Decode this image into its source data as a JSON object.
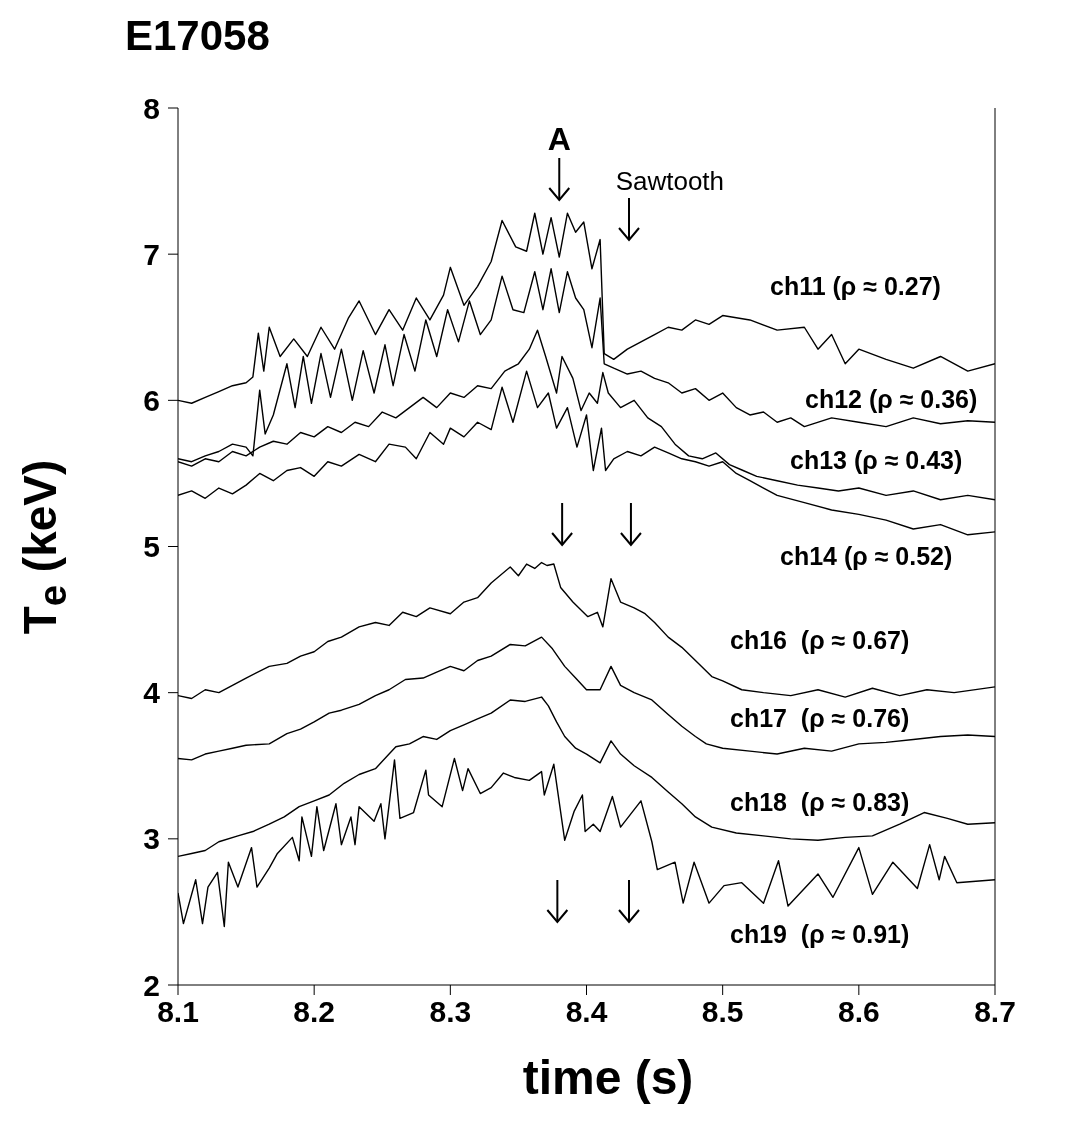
{
  "chart_data": {
    "type": "line",
    "title": "E17058",
    "xlabel": "time (s)",
    "ylabel": "T$_{e}$ (keV)",
    "xlim": [
      8.1,
      8.7
    ],
    "xticks": [
      8.1,
      8.2,
      8.3,
      8.4,
      8.5,
      8.6,
      8.7
    ],
    "ylim": [
      2,
      8
    ],
    "yticks": [
      2,
      3,
      4,
      5,
      6,
      7,
      8
    ],
    "marker": "none",
    "line_style": "solid",
    "annotations": [
      "A",
      "Sawtooth"
    ],
    "series": [
      {
        "name": "ch11 (ρ ≈ 0.27)",
        "color": "#000000",
        "x": [
          8.1,
          8.11,
          8.12,
          8.13,
          8.14,
          8.15,
          8.155,
          8.159,
          8.163,
          8.167,
          8.175,
          8.185,
          8.195,
          8.205,
          8.215,
          8.225,
          8.233,
          8.245,
          8.255,
          8.265,
          8.275,
          8.285,
          8.295,
          8.3,
          8.31,
          8.32,
          8.33,
          8.338,
          8.348,
          8.356,
          8.362,
          8.368,
          8.374,
          8.38,
          8.386,
          8.392,
          8.398,
          8.404,
          8.41,
          8.413,
          8.42,
          8.43,
          8.44,
          8.45,
          8.46,
          8.47,
          8.48,
          8.49,
          8.5,
          8.52,
          8.54,
          8.56,
          8.57,
          8.58,
          8.59,
          8.6,
          8.62,
          8.64,
          8.66,
          8.68,
          8.7
        ],
        "values": [
          6.0,
          5.98,
          6.02,
          6.06,
          6.1,
          6.12,
          6.16,
          6.46,
          6.2,
          6.5,
          6.3,
          6.42,
          6.3,
          6.5,
          6.35,
          6.56,
          6.68,
          6.45,
          6.62,
          6.48,
          6.7,
          6.55,
          6.72,
          6.91,
          6.65,
          6.78,
          6.95,
          7.23,
          7.05,
          7.02,
          7.28,
          7.0,
          7.25,
          6.98,
          7.28,
          7.15,
          7.22,
          6.9,
          7.1,
          6.32,
          6.28,
          6.35,
          6.4,
          6.45,
          6.5,
          6.48,
          6.55,
          6.52,
          6.58,
          6.55,
          6.48,
          6.5,
          6.35,
          6.45,
          6.25,
          6.35,
          6.28,
          6.22,
          6.3,
          6.2,
          6.25
        ]
      },
      {
        "name": "ch12 (ρ ≈ 0.36)",
        "color": "#000000",
        "x": [
          8.1,
          8.11,
          8.12,
          8.13,
          8.14,
          8.15,
          8.155,
          8.16,
          8.164,
          8.17,
          8.18,
          8.186,
          8.192,
          8.198,
          8.205,
          8.212,
          8.22,
          8.228,
          8.236,
          8.244,
          8.252,
          8.258,
          8.266,
          8.274,
          8.282,
          8.29,
          8.298,
          8.306,
          8.314,
          8.322,
          8.33,
          8.338,
          8.346,
          8.354,
          8.362,
          8.368,
          8.374,
          8.38,
          8.386,
          8.392,
          8.398,
          8.404,
          8.41,
          8.413,
          8.42,
          8.43,
          8.44,
          8.45,
          8.46,
          8.47,
          8.48,
          8.49,
          8.5,
          8.51,
          8.52,
          8.53,
          8.54,
          8.55,
          8.56,
          8.58,
          8.6,
          8.62,
          8.64,
          8.66,
          8.68,
          8.7
        ],
        "values": [
          5.6,
          5.58,
          5.62,
          5.65,
          5.7,
          5.68,
          5.62,
          6.07,
          5.77,
          5.9,
          6.25,
          5.95,
          6.3,
          5.98,
          6.32,
          6.02,
          6.35,
          6.0,
          6.34,
          6.05,
          6.38,
          6.1,
          6.45,
          6.2,
          6.55,
          6.3,
          6.62,
          6.4,
          6.68,
          6.45,
          6.55,
          6.85,
          6.62,
          6.6,
          6.88,
          6.62,
          6.9,
          6.6,
          6.88,
          6.7,
          6.62,
          6.36,
          6.7,
          6.25,
          6.22,
          6.18,
          6.2,
          6.15,
          6.12,
          6.05,
          6.08,
          6.0,
          6.05,
          5.95,
          5.9,
          5.92,
          5.85,
          5.88,
          5.82,
          5.88,
          5.85,
          5.82,
          5.88,
          5.84,
          5.86,
          5.85
        ]
      },
      {
        "name": "ch13 (ρ ≈ 0.43)",
        "color": "#000000",
        "x": [
          8.1,
          8.11,
          8.12,
          8.13,
          8.14,
          8.15,
          8.16,
          8.17,
          8.18,
          8.19,
          8.2,
          8.21,
          8.22,
          8.23,
          8.24,
          8.25,
          8.26,
          8.27,
          8.28,
          8.29,
          8.3,
          8.31,
          8.32,
          8.33,
          8.34,
          8.35,
          8.358,
          8.364,
          8.37,
          8.378,
          8.382,
          8.39,
          8.396,
          8.402,
          8.408,
          8.412,
          8.416,
          8.425,
          8.435,
          8.445,
          8.455,
          8.465,
          8.475,
          8.485,
          8.495,
          8.505,
          8.515,
          8.525,
          8.54,
          8.555,
          8.57,
          8.585,
          8.6,
          8.62,
          8.64,
          8.66,
          8.68,
          8.7
        ],
        "values": [
          5.58,
          5.55,
          5.6,
          5.58,
          5.65,
          5.62,
          5.68,
          5.72,
          5.7,
          5.78,
          5.75,
          5.82,
          5.78,
          5.85,
          5.82,
          5.92,
          5.88,
          5.95,
          6.02,
          5.95,
          6.05,
          6.02,
          6.1,
          6.08,
          6.2,
          6.25,
          6.35,
          6.48,
          6.3,
          6.05,
          6.3,
          6.15,
          5.93,
          6.05,
          5.98,
          6.19,
          6.05,
          5.95,
          6.0,
          5.88,
          5.82,
          5.7,
          5.62,
          5.6,
          5.64,
          5.56,
          5.52,
          5.48,
          5.45,
          5.42,
          5.4,
          5.38,
          5.4,
          5.35,
          5.38,
          5.32,
          5.35,
          5.32
        ]
      },
      {
        "name": "ch14 (ρ ≈ 0.52)",
        "color": "#000000",
        "x": [
          8.1,
          8.11,
          8.12,
          8.13,
          8.14,
          8.15,
          8.16,
          8.17,
          8.18,
          8.19,
          8.2,
          8.21,
          8.22,
          8.233,
          8.245,
          8.255,
          8.267,
          8.275,
          8.285,
          8.295,
          8.3,
          8.31,
          8.32,
          8.33,
          8.338,
          8.346,
          8.356,
          8.364,
          8.372,
          8.378,
          8.386,
          8.393,
          8.4,
          8.405,
          8.411,
          8.414,
          8.42,
          8.43,
          8.44,
          8.45,
          8.46,
          8.47,
          8.48,
          8.49,
          8.5,
          8.51,
          8.52,
          8.53,
          8.54,
          8.56,
          8.58,
          8.6,
          8.62,
          8.64,
          8.66,
          8.68,
          8.7
        ],
        "values": [
          5.35,
          5.38,
          5.33,
          5.4,
          5.36,
          5.42,
          5.5,
          5.45,
          5.52,
          5.54,
          5.48,
          5.58,
          5.55,
          5.63,
          5.58,
          5.7,
          5.68,
          5.6,
          5.78,
          5.7,
          5.81,
          5.75,
          5.85,
          5.8,
          6.09,
          5.85,
          6.2,
          5.95,
          6.05,
          5.81,
          5.95,
          5.68,
          5.9,
          5.52,
          5.81,
          5.52,
          5.6,
          5.65,
          5.62,
          5.68,
          5.64,
          5.6,
          5.58,
          5.55,
          5.58,
          5.5,
          5.45,
          5.4,
          5.35,
          5.3,
          5.25,
          5.22,
          5.18,
          5.12,
          5.15,
          5.08,
          5.1
        ]
      },
      {
        "name": "ch16  (ρ ≈ 0.67)",
        "color": "#000000",
        "x": [
          8.1,
          8.11,
          8.12,
          8.13,
          8.14,
          8.15,
          8.167,
          8.18,
          8.19,
          8.2,
          8.21,
          8.22,
          8.233,
          8.245,
          8.255,
          8.265,
          8.275,
          8.285,
          8.3,
          8.31,
          8.32,
          8.33,
          8.344,
          8.35,
          8.356,
          8.362,
          8.367,
          8.371,
          8.376,
          8.381,
          8.39,
          8.401,
          8.408,
          8.412,
          8.418,
          8.425,
          8.435,
          8.443,
          8.45,
          8.46,
          8.47,
          8.48,
          8.492,
          8.5,
          8.514,
          8.53,
          8.55,
          8.57,
          8.59,
          8.61,
          8.63,
          8.65,
          8.67,
          8.7
        ],
        "values": [
          3.98,
          3.96,
          4.02,
          4.0,
          4.05,
          4.1,
          4.18,
          4.2,
          4.25,
          4.28,
          4.35,
          4.38,
          4.45,
          4.48,
          4.46,
          4.55,
          4.52,
          4.58,
          4.54,
          4.62,
          4.65,
          4.75,
          4.86,
          4.8,
          4.88,
          4.85,
          4.89,
          4.87,
          4.88,
          4.72,
          4.62,
          4.52,
          4.55,
          4.45,
          4.78,
          4.62,
          4.58,
          4.54,
          4.48,
          4.38,
          4.31,
          4.22,
          4.11,
          4.08,
          4.02,
          4.0,
          3.98,
          4.02,
          3.97,
          4.03,
          3.98,
          4.02,
          4.0,
          4.04
        ]
      },
      {
        "name": "ch17  (ρ ≈ 0.76)",
        "color": "#000000",
        "x": [
          8.1,
          8.11,
          8.12,
          8.13,
          8.14,
          8.15,
          8.167,
          8.18,
          8.19,
          8.2,
          8.211,
          8.22,
          8.233,
          8.245,
          8.255,
          8.267,
          8.28,
          8.29,
          8.3,
          8.31,
          8.32,
          8.33,
          8.344,
          8.355,
          8.367,
          8.375,
          8.384,
          8.392,
          8.4,
          8.41,
          8.418,
          8.425,
          8.435,
          8.448,
          8.46,
          8.47,
          8.48,
          8.488,
          8.5,
          8.52,
          8.54,
          8.56,
          8.58,
          8.6,
          8.62,
          8.64,
          8.66,
          8.68,
          8.7
        ],
        "values": [
          3.55,
          3.54,
          3.58,
          3.6,
          3.62,
          3.64,
          3.65,
          3.72,
          3.75,
          3.8,
          3.86,
          3.88,
          3.92,
          3.98,
          4.02,
          4.09,
          4.1,
          4.14,
          4.18,
          4.15,
          4.22,
          4.25,
          4.33,
          4.32,
          4.38,
          4.3,
          4.18,
          4.1,
          4.02,
          4.02,
          4.18,
          4.05,
          4.0,
          3.95,
          3.85,
          3.77,
          3.7,
          3.65,
          3.62,
          3.6,
          3.58,
          3.62,
          3.6,
          3.65,
          3.66,
          3.68,
          3.7,
          3.71,
          3.7
        ]
      },
      {
        "name": "ch18  (ρ ≈ 0.83)",
        "color": "#000000",
        "x": [
          8.1,
          8.11,
          8.12,
          8.13,
          8.144,
          8.155,
          8.167,
          8.178,
          8.189,
          8.2,
          8.211,
          8.222,
          8.233,
          8.245,
          8.255,
          8.26,
          8.27,
          8.28,
          8.29,
          8.3,
          8.31,
          8.32,
          8.33,
          8.344,
          8.355,
          8.367,
          8.372,
          8.378,
          8.384,
          8.392,
          8.4,
          8.41,
          8.418,
          8.425,
          8.435,
          8.448,
          8.46,
          8.47,
          8.48,
          8.492,
          8.51,
          8.53,
          8.55,
          8.57,
          8.59,
          8.61,
          8.63,
          8.648,
          8.665,
          8.68,
          8.7
        ],
        "values": [
          2.88,
          2.9,
          2.92,
          2.98,
          3.02,
          3.05,
          3.1,
          3.15,
          3.22,
          3.26,
          3.3,
          3.38,
          3.44,
          3.48,
          3.58,
          3.63,
          3.65,
          3.7,
          3.68,
          3.74,
          3.78,
          3.82,
          3.86,
          3.95,
          3.94,
          3.97,
          3.91,
          3.8,
          3.7,
          3.62,
          3.58,
          3.52,
          3.67,
          3.58,
          3.5,
          3.42,
          3.32,
          3.24,
          3.15,
          3.08,
          3.04,
          3.02,
          3.0,
          2.99,
          3.01,
          3.02,
          3.1,
          3.18,
          3.14,
          3.1,
          3.11
        ]
      },
      {
        "name": "ch19  (ρ ≈ 0.91)",
        "color": "#000000",
        "x": [
          8.1,
          8.104,
          8.113,
          8.118,
          8.122,
          8.129,
          8.134,
          8.137,
          8.144,
          8.154,
          8.158,
          8.167,
          8.173,
          8.184,
          8.189,
          8.191,
          8.198,
          8.202,
          8.207,
          8.216,
          8.22,
          8.227,
          8.23,
          8.233,
          8.244,
          8.249,
          8.252,
          8.259,
          8.263,
          8.273,
          8.282,
          8.284,
          8.294,
          8.303,
          8.309,
          8.313,
          8.322,
          8.33,
          8.339,
          8.347,
          8.358,
          8.367,
          8.369,
          8.376,
          8.384,
          8.391,
          8.397,
          8.399,
          8.405,
          8.41,
          8.419,
          8.425,
          8.44,
          8.448,
          8.452,
          8.465,
          8.471,
          8.479,
          8.49,
          8.501,
          8.514,
          8.53,
          8.541,
          8.548,
          8.57,
          8.581,
          8.6,
          8.61,
          8.625,
          8.643,
          8.652,
          8.659,
          8.663,
          8.672,
          8.7
        ],
        "values": [
          2.63,
          2.42,
          2.72,
          2.42,
          2.67,
          2.77,
          2.4,
          2.84,
          2.67,
          2.94,
          2.67,
          2.8,
          2.9,
          3.01,
          2.85,
          3.15,
          2.88,
          3.22,
          2.92,
          3.24,
          2.96,
          3.15,
          2.96,
          3.22,
          3.12,
          3.24,
          3.0,
          3.54,
          3.14,
          3.18,
          3.47,
          3.3,
          3.22,
          3.55,
          3.33,
          3.48,
          3.31,
          3.35,
          3.45,
          3.42,
          3.4,
          3.46,
          3.3,
          3.51,
          2.99,
          3.19,
          3.3,
          3.05,
          3.1,
          3.05,
          3.29,
          3.08,
          3.26,
          2.98,
          2.79,
          2.84,
          2.56,
          2.84,
          2.56,
          2.68,
          2.7,
          2.56,
          2.85,
          2.54,
          2.76,
          2.6,
          2.94,
          2.62,
          2.84,
          2.66,
          2.96,
          2.72,
          2.88,
          2.7,
          2.72
        ]
      }
    ]
  }
}
